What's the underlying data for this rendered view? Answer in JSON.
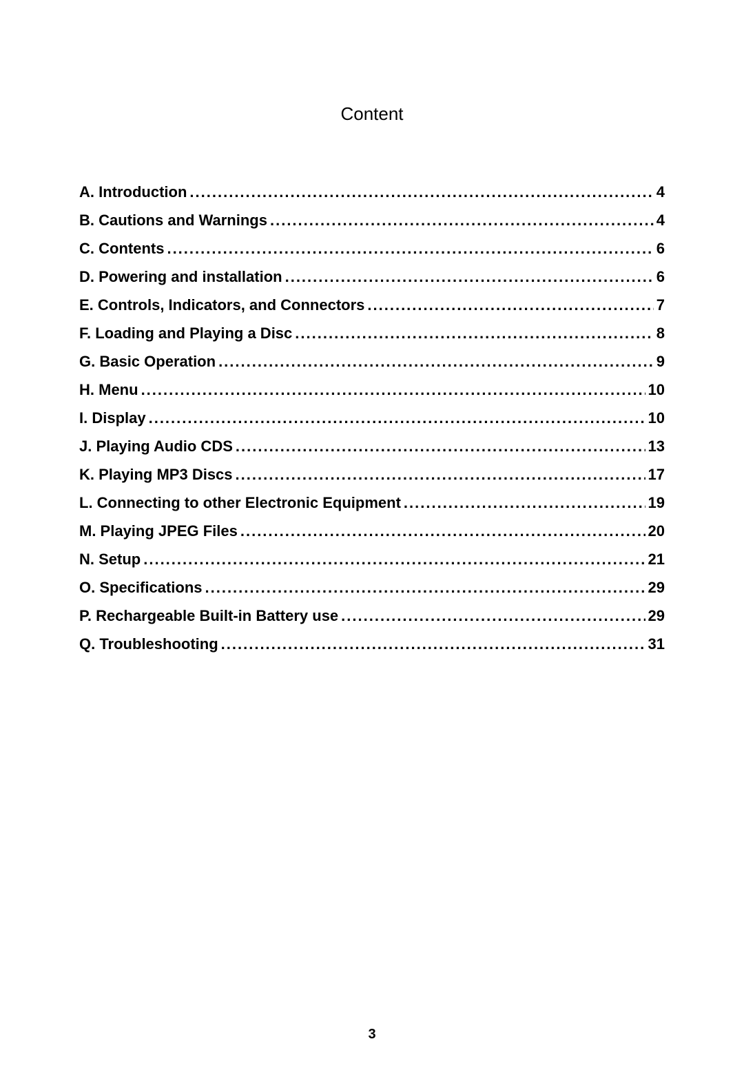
{
  "heading": "Content",
  "page_number": "3",
  "entries": [
    {
      "label": "A. Introduction",
      "page": "4"
    },
    {
      "label": "B. Cautions and Warnings",
      "page": "4"
    },
    {
      "label": "C. Contents",
      "page": "6"
    },
    {
      "label": "D. Powering and installation",
      "page": "6"
    },
    {
      "label": "E. Controls, Indicators, and Connectors",
      "page": "7"
    },
    {
      "label": "F. Loading and Playing a Disc",
      "page": "8"
    },
    {
      "label": "G. Basic Operation",
      "page": "9"
    },
    {
      "label": "H.  Menu",
      "page": "10"
    },
    {
      "label": "I. Display",
      "page": "10"
    },
    {
      "label": "J. Playing Audio CDS",
      "page": "13"
    },
    {
      "label": "K. Playing MP3 Discs",
      "page": "17"
    },
    {
      "label": "L. Connecting to other Electronic  Equipment",
      "page": "19"
    },
    {
      "label": "M. Playing JPEG Files",
      "page": "20"
    },
    {
      "label": "N. Setup",
      "page": "21"
    },
    {
      "label": "O. Specifications",
      "page": "29"
    },
    {
      "label": "P. Rechargeable Built-in Battery use",
      "page": "29"
    },
    {
      "label": "Q. Troubleshooting",
      "page": "31"
    }
  ],
  "styles": {
    "background_color": "#ffffff",
    "text_color": "#000000",
    "heading_fontsize": 26,
    "entry_fontsize": 22,
    "entry_fontweight": "bold",
    "page_number_fontsize": 20,
    "dot_char": "."
  }
}
